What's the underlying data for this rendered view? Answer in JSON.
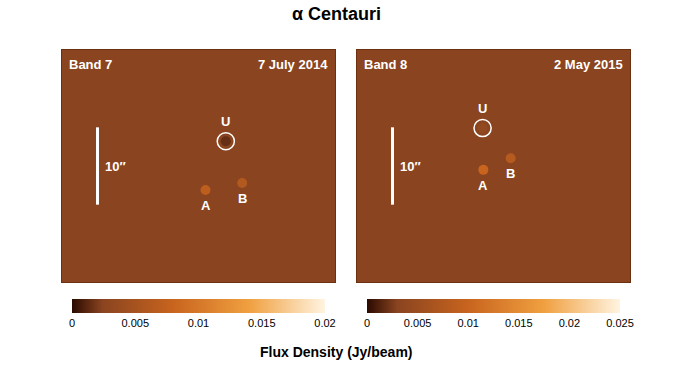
{
  "title": "α Centauri",
  "colorbar_title": "Flux Density (Jy/beam)",
  "chart_data": [
    {
      "type": "scatter",
      "band": "Band 7",
      "date": "7 July 2014",
      "xlim": [
        -17.5,
        17.5
      ],
      "ylim": [
        -15,
        15
      ],
      "tick_labels": false,
      "grid": false,
      "sources": [
        {
          "name": "A",
          "x": 0.9,
          "y": -3.1,
          "flux": 0.007,
          "circled": false
        },
        {
          "name": "B",
          "x": 5.6,
          "y": -2.2,
          "flux": 0.006,
          "circled": false
        },
        {
          "name": "U",
          "x": 3.5,
          "y": 3.2,
          "flux": 0.0015,
          "circled": true
        }
      ],
      "scale_bar": {
        "label": "10″",
        "length": 10
      },
      "colorbar": {
        "range": [
          0,
          0.02
        ],
        "ticks": [
          0,
          0.005,
          0.01,
          0.015,
          0.02
        ]
      }
    },
    {
      "type": "scatter",
      "band": "Band 8",
      "date": "2 May 2015",
      "xlim": [
        -17.5,
        17.5
      ],
      "ylim": [
        -15,
        15
      ],
      "tick_labels": false,
      "grid": false,
      "sources": [
        {
          "name": "A",
          "x": -1.3,
          "y": -0.5,
          "flux": 0.01,
          "circled": false
        },
        {
          "name": "B",
          "x": 2.2,
          "y": 1.0,
          "flux": 0.008,
          "circled": false
        },
        {
          "name": "U",
          "x": -1.4,
          "y": 4.9,
          "flux": 0.004,
          "circled": true
        }
      ],
      "scale_bar": {
        "label": "10″",
        "length": 10
      },
      "colorbar": {
        "range": [
          0,
          0.025
        ],
        "ticks": [
          0,
          0.005,
          0.01,
          0.015,
          0.02,
          0.025
        ]
      }
    }
  ]
}
